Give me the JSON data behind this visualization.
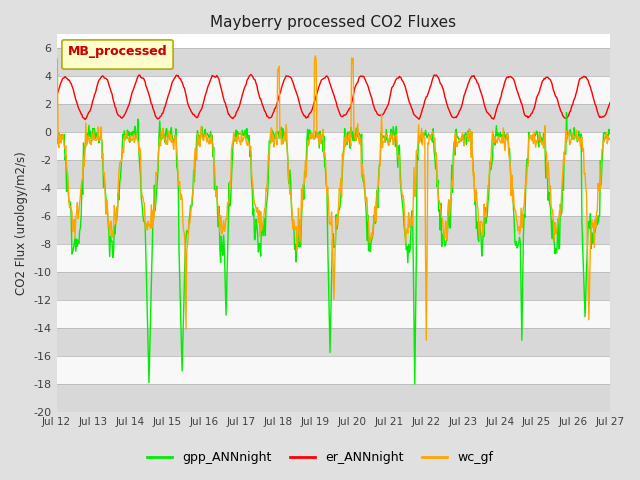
{
  "title": "Mayberry processed CO2 Fluxes",
  "ylabel": "CO2 Flux (urology/m2/s)",
  "ylim": [
    -20,
    7
  ],
  "yticks": [
    -20,
    -18,
    -16,
    -14,
    -12,
    -10,
    -8,
    -6,
    -4,
    -2,
    0,
    2,
    4,
    6
  ],
  "xtick_labels": [
    "Jul 12",
    "Jul 13",
    "Jul 14",
    "Jul 15",
    "Jul 16",
    "Jul 17",
    "Jul 18",
    "Jul 19",
    "Jul 20",
    "Jul 21",
    "Jul 22",
    "Jul 23",
    "Jul 24",
    "Jul 25",
    "Jul 26",
    "Jul 27"
  ],
  "n_days": 15,
  "pts_per_day": 48,
  "legend_label": "MB_processed",
  "series_labels": [
    "gpp_ANNnight",
    "er_ANNnight",
    "wc_gf"
  ],
  "series_colors": [
    "#00EE00",
    "#FF0000",
    "#FFA500"
  ],
  "line_width": 1.0,
  "fig_bg_color": "#E0E0E0",
  "band_white": "#F8F8F8",
  "band_gray": "#D8D8D8",
  "figsize": [
    6.4,
    4.8
  ],
  "dpi": 100
}
